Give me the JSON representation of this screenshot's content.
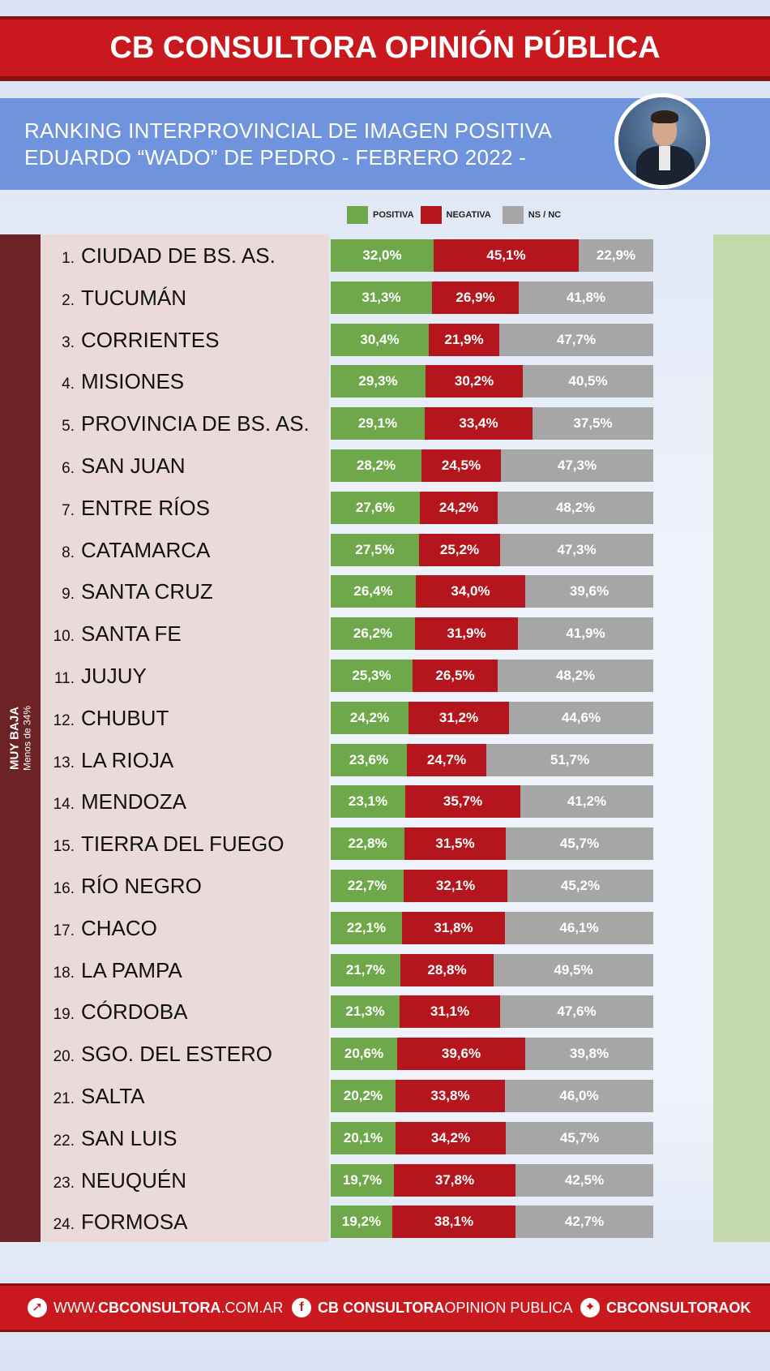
{
  "header": {
    "title": "CB CONSULTORA OPINIÓN PÚBLICA"
  },
  "subheader": {
    "line1": "RANKING INTERPROVINCIAL DE IMAGEN POSITIVA",
    "line2": "EDUARDO “WADO” DE PEDRO  - FEBRERO 2022 -"
  },
  "sidebar": {
    "label": "MUY BAJA",
    "sublabel": "Menos de 34%"
  },
  "colors": {
    "positiva": "#6ea84a",
    "negativa": "#b5151c",
    "nsnc": "#a6a6a6",
    "brand_red": "#c9191e"
  },
  "chart_data": {
    "type": "bar",
    "stacked": true,
    "orientation": "horizontal",
    "legend": [
      "POSITIVA",
      "NEGATIVA",
      "NS / NC"
    ],
    "rows": [
      {
        "rank": "1.",
        "name": "CIUDAD DE BS. AS.",
        "pos": 32.0,
        "neg": 45.1,
        "ns": 22.9,
        "pos_label": "32,0%",
        "neg_label": "45,1%",
        "ns_label": "22,9%"
      },
      {
        "rank": "2.",
        "name": "TUCUMÁN",
        "pos": 31.3,
        "neg": 26.9,
        "ns": 41.8,
        "pos_label": "31,3%",
        "neg_label": "26,9%",
        "ns_label": "41,8%"
      },
      {
        "rank": "3.",
        "name": "CORRIENTES",
        "pos": 30.4,
        "neg": 21.9,
        "ns": 47.7,
        "pos_label": "30,4%",
        "neg_label": "21,9%",
        "ns_label": "47,7%"
      },
      {
        "rank": "4.",
        "name": "MISIONES",
        "pos": 29.3,
        "neg": 30.2,
        "ns": 40.5,
        "pos_label": "29,3%",
        "neg_label": "30,2%",
        "ns_label": "40,5%"
      },
      {
        "rank": "5.",
        "name": "PROVINCIA DE BS. AS.",
        "pos": 29.1,
        "neg": 33.4,
        "ns": 37.5,
        "pos_label": "29,1%",
        "neg_label": "33,4%",
        "ns_label": "37,5%"
      },
      {
        "rank": "6.",
        "name": "SAN JUAN",
        "pos": 28.2,
        "neg": 24.5,
        "ns": 47.3,
        "pos_label": "28,2%",
        "neg_label": "24,5%",
        "ns_label": "47,3%"
      },
      {
        "rank": "7.",
        "name": "ENTRE RÍOS",
        "pos": 27.6,
        "neg": 24.2,
        "ns": 48.2,
        "pos_label": "27,6%",
        "neg_label": "24,2%",
        "ns_label": "48,2%"
      },
      {
        "rank": "8.",
        "name": "CATAMARCA",
        "pos": 27.5,
        "neg": 25.2,
        "ns": 47.3,
        "pos_label": "27,5%",
        "neg_label": "25,2%",
        "ns_label": "47,3%"
      },
      {
        "rank": "9.",
        "name": "SANTA CRUZ",
        "pos": 26.4,
        "neg": 34.0,
        "ns": 39.6,
        "pos_label": "26,4%",
        "neg_label": "34,0%",
        "ns_label": "39,6%"
      },
      {
        "rank": "10.",
        "name": "SANTA FE",
        "pos": 26.2,
        "neg": 31.9,
        "ns": 41.9,
        "pos_label": "26,2%",
        "neg_label": "31,9%",
        "ns_label": "41,9%"
      },
      {
        "rank": "11.",
        "name": "JUJUY",
        "pos": 25.3,
        "neg": 26.5,
        "ns": 48.2,
        "pos_label": "25,3%",
        "neg_label": "26,5%",
        "ns_label": "48,2%"
      },
      {
        "rank": "12.",
        "name": "CHUBUT",
        "pos": 24.2,
        "neg": 31.2,
        "ns": 44.6,
        "pos_label": "24,2%",
        "neg_label": "31,2%",
        "ns_label": "44,6%"
      },
      {
        "rank": "13.",
        "name": "LA RIOJA",
        "pos": 23.6,
        "neg": 24.7,
        "ns": 51.7,
        "pos_label": "23,6%",
        "neg_label": "24,7%",
        "ns_label": "51,7%"
      },
      {
        "rank": "14.",
        "name": "MENDOZA",
        "pos": 23.1,
        "neg": 35.7,
        "ns": 41.2,
        "pos_label": "23,1%",
        "neg_label": "35,7%",
        "ns_label": "41,2%"
      },
      {
        "rank": "15.",
        "name": "TIERRA DEL FUEGO",
        "pos": 22.8,
        "neg": 31.5,
        "ns": 45.7,
        "pos_label": "22,8%",
        "neg_label": "31,5%",
        "ns_label": "45,7%"
      },
      {
        "rank": "16.",
        "name": "RÍO NEGRO",
        "pos": 22.7,
        "neg": 32.1,
        "ns": 45.2,
        "pos_label": "22,7%",
        "neg_label": "32,1%",
        "ns_label": "45,2%"
      },
      {
        "rank": "17.",
        "name": "CHACO",
        "pos": 22.1,
        "neg": 31.8,
        "ns": 46.1,
        "pos_label": "22,1%",
        "neg_label": "31,8%",
        "ns_label": "46,1%"
      },
      {
        "rank": "18.",
        "name": "LA PAMPA",
        "pos": 21.7,
        "neg": 28.8,
        "ns": 49.5,
        "pos_label": "21,7%",
        "neg_label": "28,8%",
        "ns_label": "49,5%"
      },
      {
        "rank": "19.",
        "name": "CÓRDOBA",
        "pos": 21.3,
        "neg": 31.1,
        "ns": 47.6,
        "pos_label": "21,3%",
        "neg_label": "31,1%",
        "ns_label": "47,6%"
      },
      {
        "rank": "20.",
        "name": "SGO. DEL ESTERO",
        "pos": 20.6,
        "neg": 39.6,
        "ns": 39.8,
        "pos_label": "20,6%",
        "neg_label": "39,6%",
        "ns_label": "39,8%"
      },
      {
        "rank": "21.",
        "name": "SALTA",
        "pos": 20.2,
        "neg": 33.8,
        "ns": 46.0,
        "pos_label": "20,2%",
        "neg_label": "33,8%",
        "ns_label": "46,0%"
      },
      {
        "rank": "22.",
        "name": "SAN LUIS",
        "pos": 20.1,
        "neg": 34.2,
        "ns": 45.7,
        "pos_label": "20,1%",
        "neg_label": "34,2%",
        "ns_label": "45,7%"
      },
      {
        "rank": "23.",
        "name": "NEUQUÉN",
        "pos": 19.7,
        "neg": 37.8,
        "ns": 42.5,
        "pos_label": "19,7%",
        "neg_label": "37,8%",
        "ns_label": "42,5%"
      },
      {
        "rank": "24.",
        "name": "FORMOSA",
        "pos": 19.2,
        "neg": 38.1,
        "ns": 42.7,
        "pos_label": "19,2%",
        "neg_label": "38,1%",
        "ns_label": "42,7%"
      }
    ]
  },
  "footer": {
    "web_prefix": "WWW.",
    "web_bold": "CBCONSULTORA",
    "web_suffix": ".COM.AR",
    "fb_bold": "CB CONSULTORA",
    "fb_light": " OPINION PUBLICA",
    "tw_bold": "CBCONSULTORAOK",
    "web_icon": "cursor-click-icon",
    "fb_icon": "facebook-icon",
    "tw_icon": "twitter-icon"
  }
}
